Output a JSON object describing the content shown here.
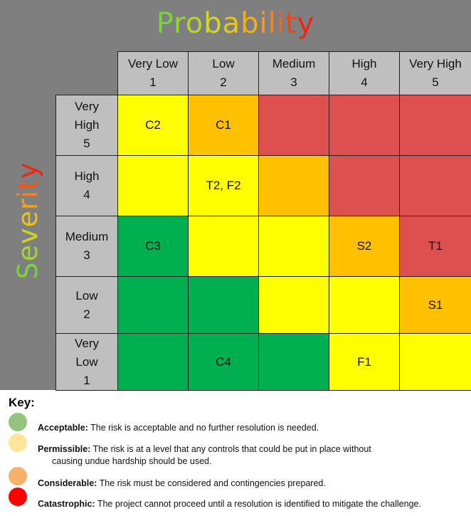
{
  "titles": {
    "probability": "Probability",
    "severity": "Severity"
  },
  "columns": [
    {
      "label": "Very Low",
      "num": "1"
    },
    {
      "label": "Low",
      "num": "2"
    },
    {
      "label": "Medium",
      "num": "3"
    },
    {
      "label": "High",
      "num": "4"
    },
    {
      "label": "Very High",
      "num": "5"
    }
  ],
  "rows": [
    {
      "label": "Very\nHigh",
      "num": "5"
    },
    {
      "label": "High",
      "num": "4"
    },
    {
      "label": "Medium",
      "num": "3"
    },
    {
      "label": "Low",
      "num": "2"
    },
    {
      "label": "Very\nLow",
      "num": "1"
    }
  ],
  "level_colors": {
    "acceptable": "#00b050",
    "permissible": "#ffff00",
    "considerable": "#ffc000",
    "catastrophic": "#de4f4f"
  },
  "grid": [
    [
      {
        "level": "permissible",
        "text": "C2"
      },
      {
        "level": "considerable",
        "text": "C1"
      },
      {
        "level": "catastrophic",
        "text": ""
      },
      {
        "level": "catastrophic",
        "text": ""
      },
      {
        "level": "catastrophic",
        "text": ""
      }
    ],
    [
      {
        "level": "permissible",
        "text": ""
      },
      {
        "level": "permissible",
        "text": "T2, F2"
      },
      {
        "level": "considerable",
        "text": ""
      },
      {
        "level": "catastrophic",
        "text": ""
      },
      {
        "level": "catastrophic",
        "text": ""
      }
    ],
    [
      {
        "level": "acceptable",
        "text": "C3"
      },
      {
        "level": "permissible",
        "text": ""
      },
      {
        "level": "permissible",
        "text": ""
      },
      {
        "level": "considerable",
        "text": "S2"
      },
      {
        "level": "catastrophic",
        "text": "T1"
      }
    ],
    [
      {
        "level": "acceptable",
        "text": ""
      },
      {
        "level": "acceptable",
        "text": ""
      },
      {
        "level": "permissible",
        "text": ""
      },
      {
        "level": "permissible",
        "text": ""
      },
      {
        "level": "considerable",
        "text": "S1"
      }
    ],
    [
      {
        "level": "acceptable",
        "text": ""
      },
      {
        "level": "acceptable",
        "text": "C4"
      },
      {
        "level": "acceptable",
        "text": ""
      },
      {
        "level": "permissible",
        "text": "F1"
      },
      {
        "level": "permissible",
        "text": ""
      }
    ]
  ],
  "key": {
    "title": "Key:",
    "items": [
      {
        "name": "Acceptable:",
        "desc": "The risk is acceptable and no further resolution is needed.",
        "dot_color": "#92c47d"
      },
      {
        "name": "Permissible:",
        "desc": "The risk is at a level that any controls that could be put in place without",
        "desc2": "causing undue hardship should be used.",
        "dot_color": "#ffe599"
      },
      {
        "name": "Considerable:",
        "desc": "The risk must be considered and contingencies prepared.",
        "dot_color": "#f6b26b"
      },
      {
        "name": "Catastrophic:",
        "desc": "The project cannot proceed until a resolution is identified to mitigate the challenge.",
        "dot_color": "#ff0000"
      }
    ]
  }
}
